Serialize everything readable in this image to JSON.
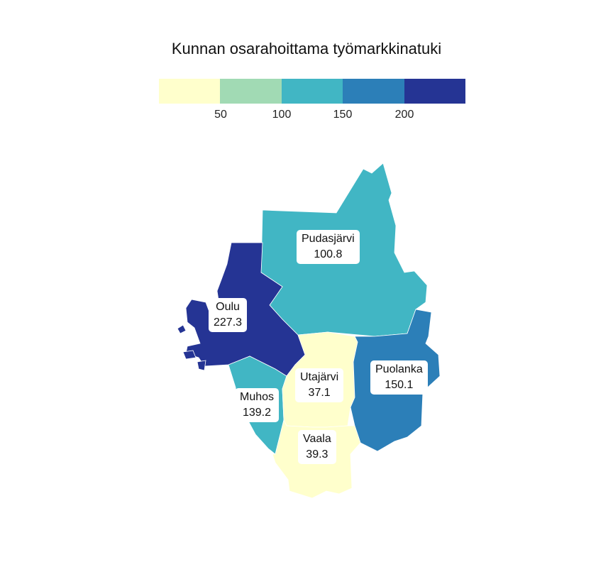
{
  "title": "Kunnan osarahoittama työmarkkinatuki",
  "legend": {
    "colors": [
      "#ffffcc",
      "#a1dab4",
      "#41b6c4",
      "#2c7fb8",
      "#253494"
    ],
    "ticks": [
      "50",
      "100",
      "150",
      "200"
    ]
  },
  "municipalities": [
    {
      "name": "Pudasjärvi",
      "value": "100.8",
      "color": "#41b6c4"
    },
    {
      "name": "Oulu",
      "value": "227.3",
      "color": "#253494"
    },
    {
      "name": "Utajärvi",
      "value": "37.1",
      "color": "#ffffcc"
    },
    {
      "name": "Puolanka",
      "value": "150.1",
      "color": "#2c7fb8"
    },
    {
      "name": "Muhos",
      "value": "139.2",
      "color": "#41b6c4"
    },
    {
      "name": "Vaala",
      "value": "39.3",
      "color": "#ffffcc"
    }
  ]
}
